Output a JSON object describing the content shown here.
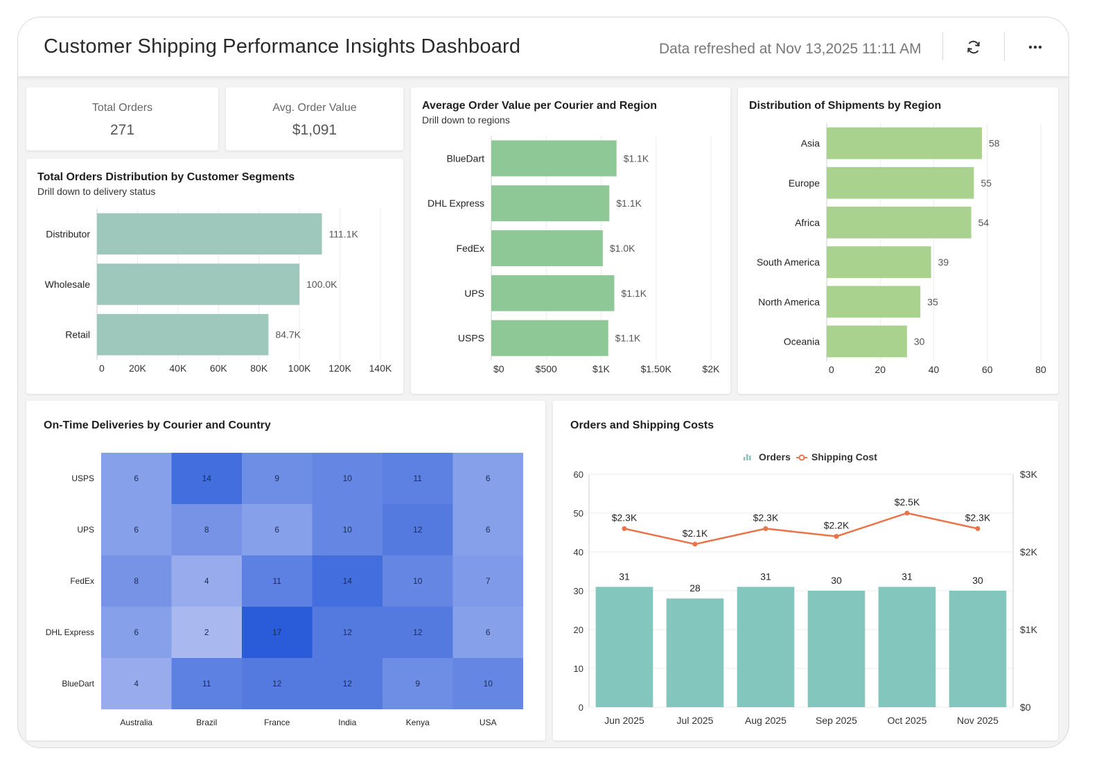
{
  "header": {
    "title": "Customer Shipping Performance Insights Dashboard",
    "refreshed": "Data refreshed at Nov 13,2025 11:11 AM",
    "refresh_icon": "refresh-icon",
    "more_icon": "more-horizontal-icon"
  },
  "kpis": [
    {
      "label": "Total Orders",
      "value": "271"
    },
    {
      "label": "Avg. Order Value",
      "value": "$1,091"
    }
  ],
  "segments": {
    "title": "Total Orders Distribution by Customer Segments",
    "subtitle": "Drill down to delivery status",
    "chart_data": {
      "type": "bar",
      "orientation": "horizontal",
      "categories": [
        "Distributor",
        "Wholesale",
        "Retail"
      ],
      "values": [
        111100,
        100000,
        84700
      ],
      "data_labels": [
        "111.1K",
        "100.0K",
        "84.7K"
      ],
      "xlim": [
        0,
        140000
      ],
      "ticks": [
        0,
        20000,
        40000,
        60000,
        80000,
        100000,
        120000,
        140000
      ],
      "tick_labels": [
        "0",
        "20K",
        "40K",
        "60K",
        "80K",
        "100K",
        "120K",
        "140K"
      ],
      "color": "#9fc8bc"
    }
  },
  "avg_order": {
    "title": "Average Order Value per Courier and Region",
    "subtitle": "Drill down to regions",
    "chart_data": {
      "type": "bar",
      "orientation": "horizontal",
      "categories": [
        "BlueDart",
        "DHL Express",
        "FedEx",
        "UPS",
        "USPS"
      ],
      "values": [
        1140,
        1075,
        1015,
        1120,
        1065
      ],
      "data_labels": [
        "$1.1K",
        "$1.1K",
        "$1.0K",
        "$1.1K",
        "$1.1K"
      ],
      "xlim": [
        0,
        2000
      ],
      "ticks": [
        0,
        500,
        1000,
        1500,
        2000
      ],
      "tick_labels": [
        "$0",
        "$500",
        "$1K",
        "$1.50K",
        "$2K"
      ],
      "color": "#8ec896"
    }
  },
  "regions": {
    "title": "Distribution of Shipments by Region",
    "chart_data": {
      "type": "bar",
      "orientation": "horizontal",
      "categories": [
        "Asia",
        "Europe",
        "Africa",
        "South America",
        "North America",
        "Oceania"
      ],
      "values": [
        58,
        55,
        54,
        39,
        35,
        30
      ],
      "data_labels": [
        "58",
        "55",
        "54",
        "39",
        "35",
        "30"
      ],
      "xlim": [
        0,
        80
      ],
      "ticks": [
        0,
        20,
        40,
        60,
        80
      ],
      "tick_labels": [
        "0",
        "20",
        "40",
        "60",
        "80"
      ],
      "color": "#a8d28e"
    }
  },
  "ontime": {
    "title": "On-Time Deliveries by Courier and Country",
    "chart_data": {
      "type": "heatmap",
      "rows": [
        "USPS",
        "UPS",
        "FedEx",
        "DHL Express",
        "BlueDart"
      ],
      "columns": [
        "Australia",
        "Brazil",
        "France",
        "India",
        "Kenya",
        "USA"
      ],
      "values": [
        [
          6,
          14,
          9,
          10,
          11,
          6
        ],
        [
          6,
          8,
          6,
          10,
          12,
          6
        ],
        [
          8,
          4,
          11,
          14,
          10,
          7
        ],
        [
          6,
          2,
          17,
          12,
          12,
          6
        ],
        [
          4,
          11,
          12,
          12,
          9,
          10
        ]
      ],
      "color_low": "#a9b9f0",
      "color_high": "#2a5bd8"
    }
  },
  "costs": {
    "title": "Orders and Shipping Costs",
    "chart_data": {
      "type": "bar",
      "combo": "bar-line",
      "categories": [
        "Jun 2025",
        "Jul 2025",
        "Aug 2025",
        "Sep 2025",
        "Oct 2025",
        "Nov 2025"
      ],
      "series": [
        {
          "name": "Orders",
          "type": "bar",
          "axis": "left",
          "values": [
            31,
            28,
            31,
            30,
            31,
            30
          ],
          "labels": [
            "31",
            "28",
            "31",
            "30",
            "31",
            "30"
          ],
          "color": "#82c6be"
        },
        {
          "name": "Shipping Cost",
          "type": "line",
          "axis": "right",
          "values": [
            2300,
            2100,
            2300,
            2200,
            2500,
            2300
          ],
          "labels": [
            "$2.3K",
            "$2.1K",
            "$2.3K",
            "$2.2K",
            "$2.5K",
            "$2.3K"
          ],
          "color": "#e9744a"
        }
      ],
      "ylim_left": [
        0,
        60
      ],
      "left_ticks": [
        0,
        10,
        20,
        30,
        40,
        50,
        60
      ],
      "ylim_right": [
        0,
        3000
      ],
      "right_ticks": [
        0,
        1000,
        2000,
        3000
      ],
      "right_tick_labels": [
        "$0",
        "$1K",
        "$2K",
        "$3K"
      ],
      "legend": "top-center"
    }
  }
}
